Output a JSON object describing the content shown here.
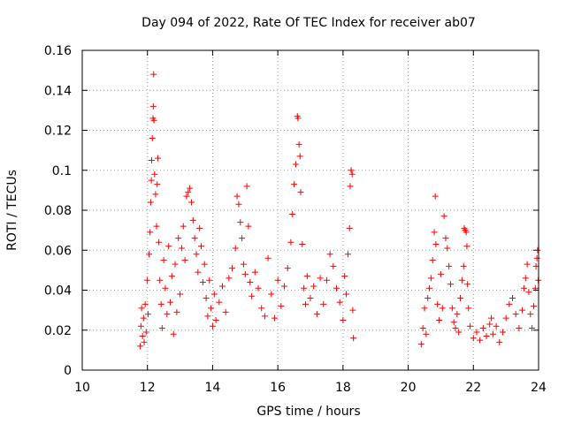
{
  "chart_data": {
    "type": "scatter",
    "title": "Day 094 of 2022, Rate Of TEC Index for receiver ab07",
    "xlabel": "GPS time / hours",
    "ylabel": "ROTI / TECUs",
    "xlim": [
      10,
      24
    ],
    "ylim": [
      0,
      0.16
    ],
    "xticks": [
      "10",
      "12",
      "14",
      "16",
      "18",
      "20",
      "22",
      "24"
    ],
    "yticks": [
      "0",
      "0.02",
      "0.04",
      "0.06",
      "0.08",
      "0.1",
      "0.12",
      "0.14",
      "0.16"
    ],
    "grid": true,
    "marker": "+",
    "color": "#ff0000",
    "series": [
      {
        "points": [
          [
            11.78,
            0.012
          ],
          [
            11.8,
            0.022
          ],
          [
            11.82,
            0.031
          ],
          [
            11.85,
            0.017
          ],
          [
            11.88,
            0.026
          ],
          [
            11.9,
            0.014
          ],
          [
            11.93,
            0.033
          ],
          [
            11.96,
            0.019
          ],
          [
            11.99,
            0.045
          ],
          [
            12.02,
            0.028
          ],
          [
            12.05,
            0.058
          ],
          [
            12.08,
            0.069
          ],
          [
            12.1,
            0.084
          ],
          [
            12.12,
            0.095
          ],
          [
            12.13,
            0.105
          ],
          [
            12.15,
            0.116
          ],
          [
            12.17,
            0.126
          ],
          [
            12.18,
            0.132
          ],
          [
            12.19,
            0.148
          ],
          [
            12.2,
            0.125
          ],
          [
            12.22,
            0.098
          ],
          [
            12.25,
            0.088
          ],
          [
            12.28,
            0.072
          ],
          [
            12.3,
            0.093
          ],
          [
            12.32,
            0.106
          ],
          [
            12.35,
            0.064
          ],
          [
            12.38,
            0.045
          ],
          [
            12.42,
            0.033
          ],
          [
            12.45,
            0.021
          ],
          [
            12.5,
            0.055
          ],
          [
            12.55,
            0.041
          ],
          [
            12.6,
            0.028
          ],
          [
            12.65,
            0.062
          ],
          [
            12.7,
            0.034
          ],
          [
            12.75,
            0.047
          ],
          [
            12.8,
            0.018
          ],
          [
            12.85,
            0.053
          ],
          [
            12.9,
            0.029
          ],
          [
            12.95,
            0.066
          ],
          [
            13.0,
            0.038
          ],
          [
            13.05,
            0.061
          ],
          [
            13.1,
            0.072
          ],
          [
            13.15,
            0.055
          ],
          [
            13.2,
            0.087
          ],
          [
            13.25,
            0.089
          ],
          [
            13.3,
            0.091
          ],
          [
            13.35,
            0.084
          ],
          [
            13.4,
            0.075
          ],
          [
            13.45,
            0.066
          ],
          [
            13.5,
            0.058
          ],
          [
            13.55,
            0.049
          ],
          [
            13.6,
            0.071
          ],
          [
            13.65,
            0.062
          ],
          [
            13.7,
            0.044
          ],
          [
            13.75,
            0.053
          ],
          [
            13.8,
            0.036
          ],
          [
            13.85,
            0.027
          ],
          [
            13.9,
            0.045
          ],
          [
            13.95,
            0.031
          ],
          [
            14.0,
            0.022
          ],
          [
            14.05,
            0.038
          ],
          [
            14.1,
            0.025
          ],
          [
            14.2,
            0.034
          ],
          [
            14.3,
            0.042
          ],
          [
            14.4,
            0.029
          ],
          [
            14.5,
            0.046
          ],
          [
            14.6,
            0.051
          ],
          [
            14.7,
            0.061
          ],
          [
            14.75,
            0.087
          ],
          [
            14.8,
            0.083
          ],
          [
            14.85,
            0.074
          ],
          [
            14.9,
            0.066
          ],
          [
            14.95,
            0.053
          ],
          [
            15.0,
            0.048
          ],
          [
            15.05,
            0.092
          ],
          [
            15.1,
            0.072
          ],
          [
            15.15,
            0.044
          ],
          [
            15.2,
            0.037
          ],
          [
            15.3,
            0.049
          ],
          [
            15.4,
            0.041
          ],
          [
            15.5,
            0.031
          ],
          [
            15.6,
            0.027
          ],
          [
            15.7,
            0.056
          ],
          [
            15.8,
            0.038
          ],
          [
            15.9,
            0.026
          ],
          [
            16.0,
            0.045
          ],
          [
            16.1,
            0.032
          ],
          [
            16.2,
            0.042
          ],
          [
            16.3,
            0.051
          ],
          [
            16.4,
            0.064
          ],
          [
            16.45,
            0.078
          ],
          [
            16.5,
            0.093
          ],
          [
            16.55,
            0.103
          ],
          [
            16.6,
            0.127
          ],
          [
            16.62,
            0.126
          ],
          [
            16.65,
            0.113
          ],
          [
            16.68,
            0.107
          ],
          [
            16.7,
            0.089
          ],
          [
            16.75,
            0.063
          ],
          [
            16.8,
            0.041
          ],
          [
            16.85,
            0.033
          ],
          [
            16.9,
            0.047
          ],
          [
            17.0,
            0.036
          ],
          [
            17.1,
            0.042
          ],
          [
            17.2,
            0.028
          ],
          [
            17.3,
            0.046
          ],
          [
            17.4,
            0.033
          ],
          [
            17.5,
            0.045
          ],
          [
            17.6,
            0.058
          ],
          [
            17.7,
            0.052
          ],
          [
            17.8,
            0.041
          ],
          [
            17.9,
            0.034
          ],
          [
            18.0,
            0.025
          ],
          [
            18.05,
            0.047
          ],
          [
            18.1,
            0.038
          ],
          [
            18.15,
            0.058
          ],
          [
            18.2,
            0.071
          ],
          [
            18.22,
            0.092
          ],
          [
            18.25,
            0.1
          ],
          [
            18.28,
            0.098
          ],
          [
            18.3,
            0.03
          ],
          [
            18.32,
            0.016
          ],
          [
            20.4,
            0.013
          ],
          [
            20.45,
            0.021
          ],
          [
            20.5,
            0.031
          ],
          [
            20.55,
            0.018
          ],
          [
            20.6,
            0.036
          ],
          [
            20.65,
            0.041
          ],
          [
            20.7,
            0.046
          ],
          [
            20.75,
            0.055
          ],
          [
            20.8,
            0.069
          ],
          [
            20.83,
            0.087
          ],
          [
            20.85,
            0.063
          ],
          [
            20.9,
            0.033
          ],
          [
            20.95,
            0.025
          ],
          [
            21.0,
            0.048
          ],
          [
            21.05,
            0.031
          ],
          [
            21.1,
            0.077
          ],
          [
            21.15,
            0.066
          ],
          [
            21.2,
            0.061
          ],
          [
            21.25,
            0.052
          ],
          [
            21.3,
            0.043
          ],
          [
            21.35,
            0.031
          ],
          [
            21.4,
            0.024
          ],
          [
            21.45,
            0.021
          ],
          [
            21.5,
            0.028
          ],
          [
            21.55,
            0.019
          ],
          [
            21.6,
            0.036
          ],
          [
            21.65,
            0.045
          ],
          [
            21.7,
            0.052
          ],
          [
            21.72,
            0.071
          ],
          [
            21.75,
            0.07
          ],
          [
            21.78,
            0.069
          ],
          [
            21.8,
            0.062
          ],
          [
            21.82,
            0.043
          ],
          [
            21.85,
            0.031
          ],
          [
            21.9,
            0.022
          ],
          [
            22.0,
            0.016
          ],
          [
            22.1,
            0.019
          ],
          [
            22.2,
            0.015
          ],
          [
            22.3,
            0.021
          ],
          [
            22.4,
            0.017
          ],
          [
            22.5,
            0.023
          ],
          [
            22.55,
            0.026
          ],
          [
            22.6,
            0.018
          ],
          [
            22.7,
            0.022
          ],
          [
            22.8,
            0.014
          ],
          [
            22.9,
            0.019
          ],
          [
            23.0,
            0.026
          ],
          [
            23.1,
            0.033
          ],
          [
            23.2,
            0.036
          ],
          [
            23.3,
            0.028
          ],
          [
            23.4,
            0.021
          ],
          [
            23.5,
            0.03
          ],
          [
            23.55,
            0.041
          ],
          [
            23.6,
            0.046
          ],
          [
            23.65,
            0.053
          ],
          [
            23.7,
            0.039
          ],
          [
            23.75,
            0.028
          ],
          [
            23.8,
            0.021
          ],
          [
            23.85,
            0.032
          ],
          [
            23.9,
            0.041
          ],
          [
            23.92,
            0.052
          ],
          [
            23.95,
            0.056
          ],
          [
            23.97,
            0.06
          ],
          [
            23.99,
            0.045
          ]
        ]
      }
    ]
  }
}
